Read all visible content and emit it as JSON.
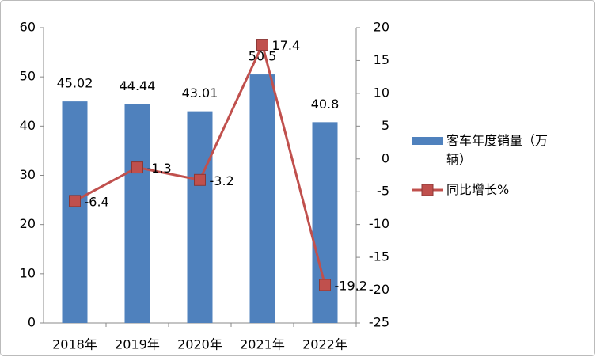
{
  "chart_data": {
    "type": "bar",
    "categories": [
      "2018年",
      "2019年",
      "2020年",
      "2021年",
      "2022年"
    ],
    "series": [
      {
        "name": "客车年度销量（万辆）",
        "type": "bar",
        "color": "#4f81bd",
        "values": [
          45.02,
          44.44,
          43.01,
          50.5,
          40.8
        ]
      },
      {
        "name": "同比增长%",
        "type": "line",
        "axis": "y2",
        "color": "#c0504d",
        "values": [
          -6.4,
          -1.3,
          -3.2,
          17.4,
          -19.2
        ]
      }
    ],
    "ylim": [
      0,
      60
    ],
    "yticks": [
      0,
      10,
      20,
      30,
      40,
      50,
      60
    ],
    "y2lim": [
      -25,
      20
    ],
    "y2ticks": [
      -25,
      -20,
      -15,
      -10,
      -5,
      0,
      5,
      10,
      15,
      20
    ],
    "grid": false
  }
}
